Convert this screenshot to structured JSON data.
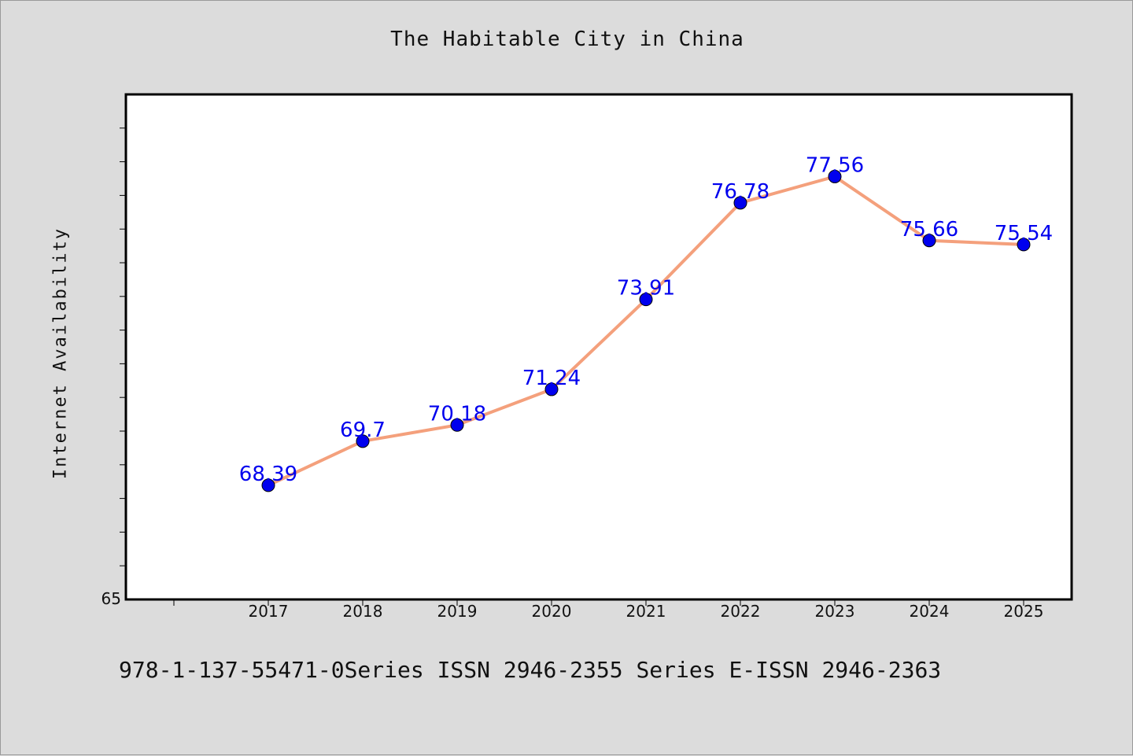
{
  "chart_data": {
    "type": "line",
    "title": "The Habitable City in China",
    "xlabel": "",
    "ylabel": "Internet Availability",
    "categories": [
      "2017",
      "2018",
      "2019",
      "2020",
      "2021",
      "2022",
      "2023",
      "2024",
      "2025"
    ],
    "series": [
      {
        "values": [
          68.39,
          69.7,
          70.18,
          71.24,
          73.91,
          76.78,
          77.56,
          75.66,
          75.54
        ]
      }
    ],
    "data_labels": [
      "68.39",
      "69.7",
      "70.18",
      "71.24",
      "73.91",
      "76.78",
      "77.56",
      "75.66",
      "75.54"
    ],
    "ytick_labels": [
      "65"
    ],
    "ylim": [
      65,
      80
    ],
    "grid": false,
    "line_color": "#f4a07c",
    "marker_color": "#0000ee",
    "label_color": "#0000ee"
  },
  "footer": "978-1-137-55471-0Series ISSN 2946-2355 Series E-ISSN 2946-2363"
}
